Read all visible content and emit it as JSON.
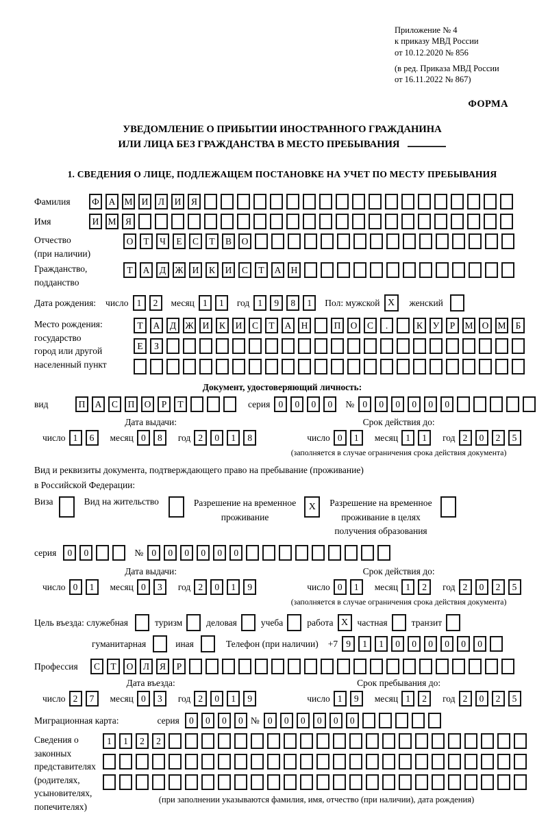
{
  "page": {
    "appendix": [
      "Приложение № 4",
      "к приказу МВД России",
      "от 10.12.2020 № 856"
    ],
    "appendix_note": [
      "(в ред. Приказа МВД России",
      "от 16.11.2022 № 867)"
    ],
    "form_label": "ФОРМА",
    "title_line1": "УВЕДОМЛЕНИЕ О ПРИБЫТИИ ИНОСТРАННОГО ГРАЖДАНИНА",
    "title_line2": "ИЛИ ЛИЦА БЕЗ ГРАЖДАНСТВА В МЕСТО ПРЕБЫВАНИЯ",
    "section1_heading": "1. СВЕДЕНИЯ О ЛИЦЕ, ПОДЛЕЖАЩЕМ ПОСТАНОВКЕ НА УЧЕТ ПО МЕСТУ ПРЕБЫВАНИЯ"
  },
  "labels": {
    "surname": "Фамилия",
    "given_name": "Имя",
    "patronymic": "Отчество",
    "patronymic_note": "(при наличии)",
    "citizenship1": "Гражданство,",
    "citizenship2": "подданство",
    "birth_date": "Дата рождения:",
    "day": "число",
    "month": "месяц",
    "year": "год",
    "sex_male": "Пол: мужской",
    "sex_female": "женский",
    "birth_place1": "Место рождения:",
    "birth_place2": "государство",
    "birth_place3": "город или другой",
    "birth_place4": "населенный пункт",
    "identity_doc_heading": "Документ, удостоверяющий личность:",
    "doc_type": "вид",
    "series": "серия",
    "number_sign": "№",
    "issue_date": "Дата выдачи:",
    "valid_until": "Срок действия до:",
    "valid_note": "(заполняется в случае ограничения срока действия документа)",
    "res_doc_line1": "Вид и реквизиты документа, подтверждающего право на пребывание (проживание)",
    "res_doc_line2": "в Российской Федерации:",
    "visa": "Виза",
    "residence_permit": "Вид на жительство",
    "temp_res_permit": [
      "Разрешение на временное",
      "проживание"
    ],
    "temp_res_permit_edu": [
      "Разрешение на временное",
      "проживание в целях",
      "получения образования"
    ],
    "purpose_service": "Цель въезда: служебная",
    "purpose_tourism": "туризм",
    "purpose_business": "деловая",
    "purpose_study": "учеба",
    "purpose_work": "работа",
    "purpose_private": "частная",
    "purpose_transit": "транзит",
    "purpose_humanitarian": "гуманитарная",
    "purpose_other": "иная",
    "phone": "Телефон (при наличии)",
    "phone_prefix": "+7",
    "profession": "Профессия",
    "entry_date": "Дата въезда:",
    "stay_until": "Срок пребывания до:",
    "migration_card": "Миграционная карта:",
    "representatives": [
      "Сведения о",
      "законных",
      "представителях",
      "(родителях,",
      "усыновителях,",
      "попечителях)"
    ],
    "representatives_note": "(при заполнении указываются фамилия, имя, отчество (при наличии), дата рождения)"
  },
  "values": {
    "surname": {
      "value": "ФАМИЛИЯ",
      "boxes": 26
    },
    "given_name": {
      "value": "ИМЯ",
      "boxes": 26
    },
    "patronymic": {
      "value": "ОТЧЕСТВО",
      "boxes": 24
    },
    "citizenship": {
      "value": "ТАДЖИКИСТАН",
      "boxes": 24
    },
    "birth_day": {
      "value": "12",
      "boxes": 2
    },
    "birth_month": {
      "value": "11",
      "boxes": 2
    },
    "birth_year": {
      "value": "1981",
      "boxes": 4
    },
    "sex_male_mark": "X",
    "sex_female_mark": "",
    "birth_place_row1": {
      "value": "ТАДЖИКИСТАН ПОС. КУРМОМБ",
      "boxes": 24
    },
    "birth_place_row2": {
      "value": "ЕЗ",
      "boxes": 24
    },
    "birth_place_row3": {
      "value": "",
      "boxes": 24
    },
    "id_doc_type": {
      "value": "ПАСПОРТ",
      "boxes": 10
    },
    "id_doc_series": {
      "value": "0000",
      "boxes": 4
    },
    "id_doc_number": {
      "value": "000000",
      "boxes": 11
    },
    "id_issue_day": {
      "value": "16",
      "boxes": 2
    },
    "id_issue_month": {
      "value": "08",
      "boxes": 2
    },
    "id_issue_year": {
      "value": "2018",
      "boxes": 4
    },
    "id_valid_day": {
      "value": "01",
      "boxes": 2
    },
    "id_valid_month": {
      "value": "11",
      "boxes": 2
    },
    "id_valid_year": {
      "value": "2025",
      "boxes": 4
    },
    "visa_mark": "",
    "residence_permit_mark": "",
    "temp_res_permit_mark": "X",
    "temp_res_permit_edu_mark": "",
    "res_series": {
      "value": "00",
      "boxes": 4
    },
    "res_number": {
      "value": "000000",
      "boxes": 15
    },
    "res_issue_day": {
      "value": "01",
      "boxes": 2
    },
    "res_issue_month": {
      "value": "03",
      "boxes": 2
    },
    "res_issue_year": {
      "value": "2019",
      "boxes": 4
    },
    "res_valid_day": {
      "value": "01",
      "boxes": 2
    },
    "res_valid_month": {
      "value": "12",
      "boxes": 2
    },
    "res_valid_year": {
      "value": "2025",
      "boxes": 4
    },
    "purpose_service_mark": "",
    "purpose_tourism_mark": "",
    "purpose_business_mark": "",
    "purpose_study_mark": "",
    "purpose_work_mark": "X",
    "purpose_private_mark": "",
    "purpose_transit_mark": "",
    "purpose_humanitarian_mark": "",
    "purpose_other_mark": "",
    "phone_digits": {
      "value": "911000000",
      "boxes": 10
    },
    "profession": {
      "value": "СТОЛЯР",
      "boxes": 26
    },
    "entry_day": {
      "value": "27",
      "boxes": 2
    },
    "entry_month": {
      "value": "03",
      "boxes": 2
    },
    "entry_year": {
      "value": "2019",
      "boxes": 4
    },
    "stay_day": {
      "value": "19",
      "boxes": 2
    },
    "stay_month": {
      "value": "12",
      "boxes": 2
    },
    "stay_year": {
      "value": "2025",
      "boxes": 4
    },
    "mig_series": {
      "value": "0000",
      "boxes": 4
    },
    "mig_number": {
      "value": "000000",
      "boxes": 11
    },
    "rep_row1": {
      "value": "1122",
      "boxes": 26
    },
    "rep_row2": {
      "value": "",
      "boxes": 26
    },
    "rep_row3": {
      "value": "",
      "boxes": 26
    }
  }
}
